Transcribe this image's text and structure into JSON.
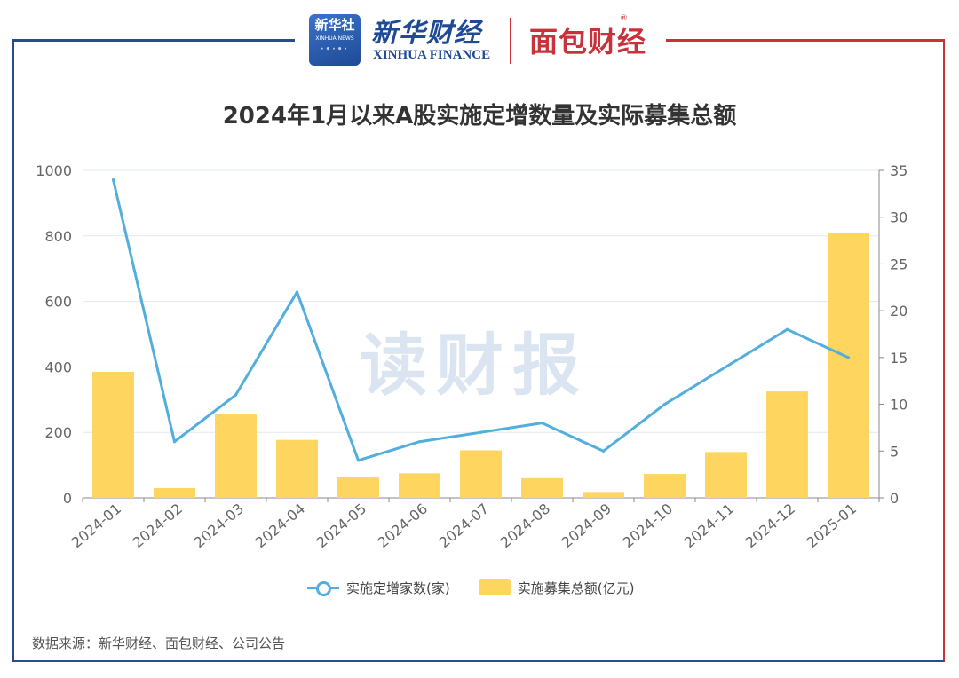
{
  "header": {
    "xinhua_badge": "新华社",
    "xinhua_badge_sub": "XINHUA NEWS",
    "xinhua_cn": "新华财经",
    "xinhua_en": "XINHUA FINANCE",
    "mianbao": "面包财经",
    "mianbao_reg": "®"
  },
  "watermark": "读财报",
  "source": "数据来源：新华财经、面包财经、公司公告",
  "colors": {
    "line": "#52aedd",
    "bar": "#fed55e",
    "frame_left": "#2b4b8f",
    "frame_right": "#c8323a"
  },
  "chart_data": {
    "type": "bar+line",
    "title": "2024年1月以来A股实施定增数量及实际募集总额",
    "categories": [
      "2024-01",
      "2024-02",
      "2024-03",
      "2024-04",
      "2024-05",
      "2024-06",
      "2024-07",
      "2024-08",
      "2024-09",
      "2024-10",
      "2024-11",
      "2024-12",
      "2025-01"
    ],
    "left_axis": {
      "min": 0,
      "max": 1000,
      "ticks": [
        0,
        200,
        400,
        600,
        800,
        1000
      ]
    },
    "right_axis": {
      "min": 0,
      "max": 35,
      "ticks": [
        0,
        5,
        10,
        15,
        20,
        25,
        30,
        35
      ]
    },
    "series": [
      {
        "name": "实施定增家数(家)",
        "type": "line",
        "axis": "right",
        "values": [
          34,
          6,
          11,
          22,
          4,
          6,
          7,
          8,
          5,
          10,
          14,
          18,
          15
        ]
      },
      {
        "name": "实施募集总额(亿元)",
        "type": "bar",
        "axis": "left",
        "values": [
          385,
          30,
          255,
          177,
          65,
          75,
          145,
          60,
          18,
          73,
          140,
          325,
          808
        ]
      }
    ],
    "grid": true,
    "legend": "bottom-center"
  }
}
